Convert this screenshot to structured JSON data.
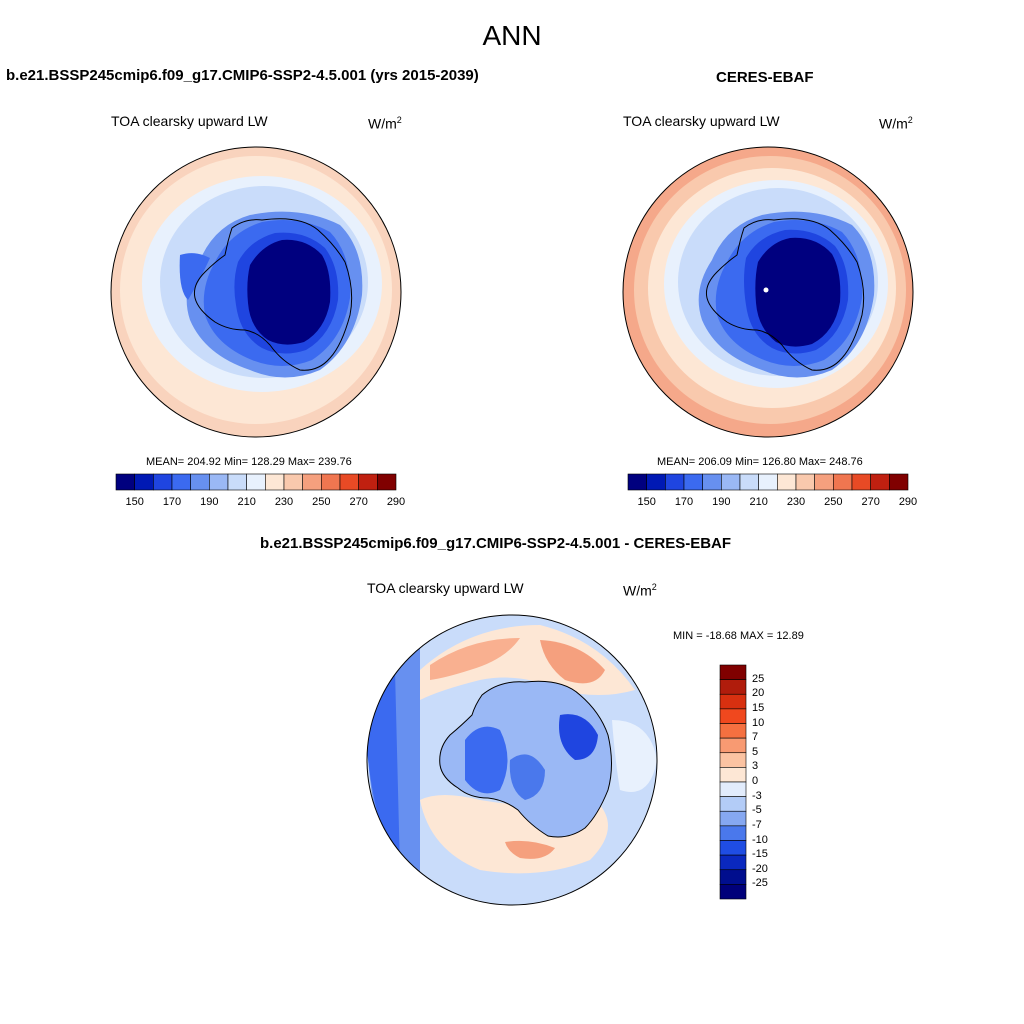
{
  "title": "ANN",
  "panels": [
    {
      "title": "b.e21.BSSP245cmip6.f09_g17.CMIP6-SSP2-4.5.001 (yrs 2015-2039)",
      "variable": "TOA clearsky upward LW",
      "units_base": "W/m",
      "units_sup": "2",
      "stats_text": "MEAN= 204.92  Min= 128.29  Max= 239.76",
      "mean": 204.92,
      "min": 128.29,
      "max": 239.76
    },
    {
      "title": "CERES-EBAF",
      "variable": "TOA clearsky upward LW",
      "units_base": "W/m",
      "units_sup": "2",
      "stats_text": "MEAN= 206.09  Min= 126.80  Max= 248.76",
      "mean": 206.09,
      "min": 126.8,
      "max": 248.76
    },
    {
      "title": "b.e21.BSSP245cmip6.f09_g17.CMIP6-SSP2-4.5.001 - CERES-EBAF",
      "variable": "TOA clearsky upward LW",
      "units_base": "W/m",
      "units_sup": "2",
      "stats_text": "MIN = -18.68 MAX =  12.89",
      "min": -18.68,
      "max": 12.89
    }
  ],
  "colorbar_main": {
    "tick_labels": [
      "150",
      "170",
      "190",
      "210",
      "230",
      "250",
      "270",
      "290"
    ],
    "colors": [
      "#00007f",
      "#0019b4",
      "#1f45e0",
      "#3b6af0",
      "#6790f0",
      "#9ab8f5",
      "#c9dcfa",
      "#e8f1fd",
      "#fde7d5",
      "#f9c9ad",
      "#f5a07e",
      "#f07650",
      "#e84a25",
      "#c02010",
      "#800000"
    ]
  },
  "colorbar_diff": {
    "tick_labels": [
      "25",
      "20",
      "15",
      "10",
      "7",
      "5",
      "3",
      "0",
      "-3",
      "-5",
      "-7",
      "-10",
      "-15",
      "-20",
      "-25"
    ],
    "colors": [
      "#800000",
      "#b01c0c",
      "#d83010",
      "#f0481e",
      "#f57040",
      "#f89a72",
      "#fbc3a2",
      "#fde7d5",
      "#e2ecfc",
      "#b3ccf7",
      "#86a8f1",
      "#4a78ec",
      "#1f4de3",
      "#0a28bf",
      "#000e8e",
      "#00007a"
    ]
  }
}
